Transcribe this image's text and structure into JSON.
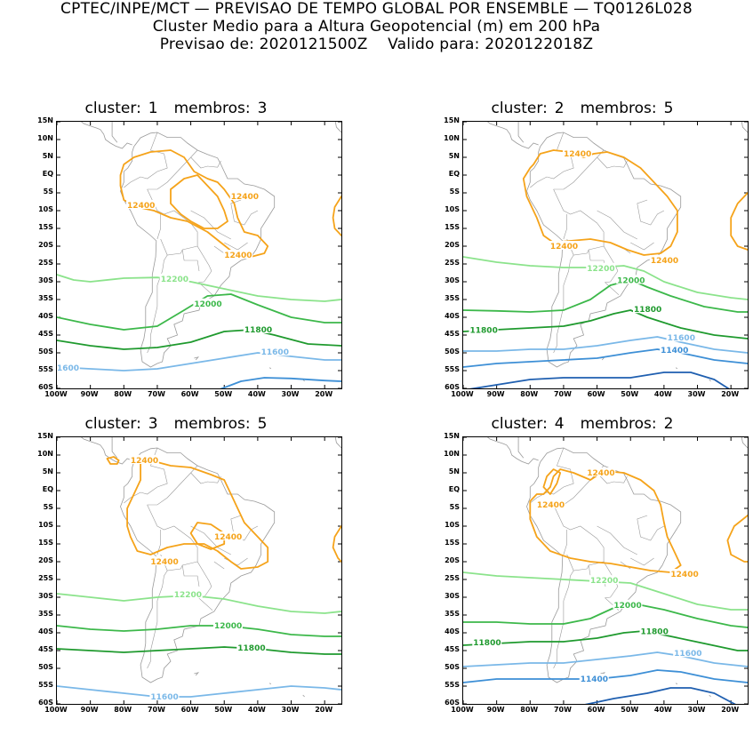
{
  "header": {
    "line1": "CPTEC/INPE/MCT — PREVISAO DE TEMPO GLOBAL POR ENSEMBLE — TQ0126L028",
    "line2": "Cluster Medio para a Altura Geopotencial (m) em 200 hPa",
    "line3": "Previsao de: 2020121500Z    Valido para: 2020122018Z"
  },
  "axes": {
    "y_ticks": [
      "15N",
      "10N",
      "5N",
      "EQ",
      "5S",
      "10S",
      "15S",
      "20S",
      "25S",
      "30S",
      "35S",
      "40S",
      "45S",
      "50S",
      "55S",
      "60S"
    ],
    "x_ticks": [
      "100W",
      "90W",
      "80W",
      "70W",
      "60W",
      "50W",
      "40W",
      "30W",
      "20W"
    ]
  },
  "colors": {
    "c12400": "#f5a31a",
    "c12200": "#8be38b",
    "c12000": "#3cb84a",
    "c11800": "#1f9a2e",
    "c11600": "#7ab8e8",
    "c11400": "#3d8fd6",
    "c11200": "#1f5fb0",
    "coast": "#9a9a9a"
  },
  "panels": [
    {
      "cluster_label": "cluster:",
      "cluster_num": "1",
      "members_label": "membros:",
      "members_num": "3",
      "labels": {
        "l12400a": "12400",
        "l12400b": "12400",
        "l12400c": "12400",
        "l12200": "12200",
        "l12000": "12000",
        "l11800": "11800",
        "l11600": "11600",
        "l11600b": "1600"
      }
    },
    {
      "cluster_label": "cluster:",
      "cluster_num": "2",
      "members_label": "membros:",
      "members_num": "5",
      "labels": {
        "l12400a": "12400",
        "l12400b": "12400",
        "l12400c": "12400",
        "l12200": "12200",
        "l12000": "12000",
        "l11800": "11800",
        "l11800b": "11800",
        "l11600": "11600",
        "l11400": "11400"
      }
    },
    {
      "cluster_label": "cluster:",
      "cluster_num": "3",
      "members_label": "membros:",
      "members_num": "5",
      "labels": {
        "l12400a": "12400",
        "l12400b": "12400",
        "l12400c": "12400",
        "l12200": "12200",
        "l12000": "12000",
        "l11800": "11800",
        "l11600": "11600"
      }
    },
    {
      "cluster_label": "cluster:",
      "cluster_num": "4",
      "members_label": "membros:",
      "members_num": "2",
      "labels": {
        "l12400a": "12400",
        "l12400b": "12400",
        "l12400c": "12400",
        "l12200": "12200",
        "l12000": "12000",
        "l11800": "11800",
        "l11800b": "11800",
        "l11600": "11600",
        "l11400": "11400"
      }
    }
  ]
}
